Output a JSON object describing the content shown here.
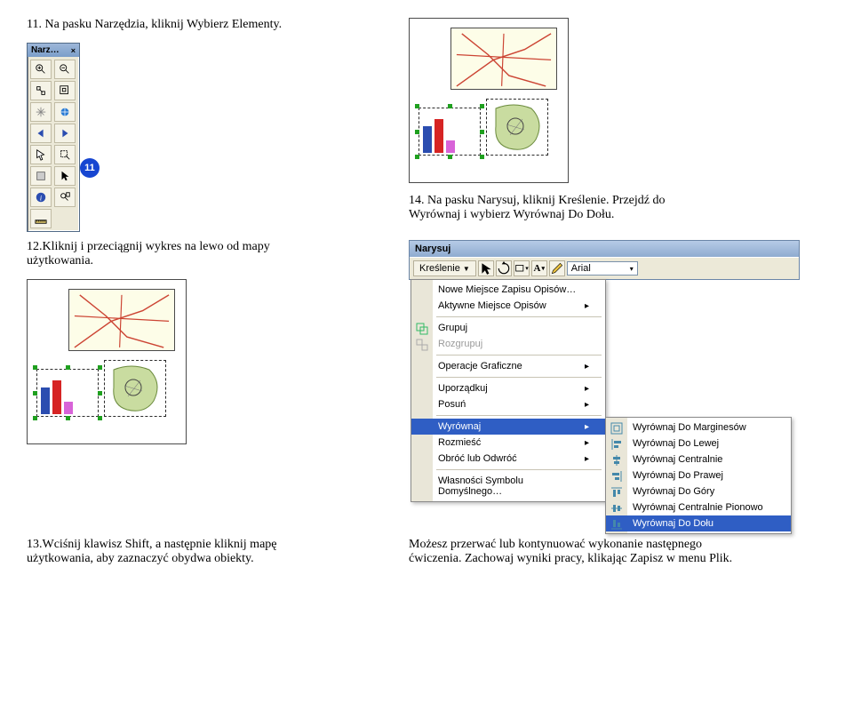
{
  "steps": {
    "s11": "11.    Na pasku Narzędzia, kliknij Wybierz Elementy.",
    "s14": "14.  Na pasku Narysuj, kliknij Kreślenie. Przejdź do Wyrównaj i wybierz Wyrównaj Do Dołu.",
    "s12": "12.Kliknij i przeciągnij wykres na lewo od mapy użytkowania.",
    "s13": "13.Wciśnij klawisz Shift, a następnie kliknij mapę użytkowania, aby zaznaczyć obydwa obiekty.",
    "note": "Możesz przerwać lub kontynuować wykonanie następnego ćwiczenia. Zachowaj wyniki pracy, klikając Zapisz w menu Plik."
  },
  "callout11": "11",
  "narz": {
    "title": "Narz…",
    "close": "×"
  },
  "narysuj": {
    "title": "Narysuj",
    "kreslenie": "Kreślenie",
    "font": "Arial"
  },
  "chart": {
    "bars": [
      {
        "h": 30,
        "color": "#2b4db0"
      },
      {
        "h": 38,
        "color": "#d62424"
      },
      {
        "h": 14,
        "color": "#d863d8"
      }
    ]
  },
  "menu": {
    "items": [
      {
        "label": "Nowe Miejsce Zapisu Opisów…",
        "sub": false,
        "disabled": false,
        "icon": ""
      },
      {
        "label": "Aktywne Miejsce Opisów",
        "sub": true,
        "disabled": false,
        "icon": ""
      },
      {
        "sep": true
      },
      {
        "label": "Grupuj",
        "sub": false,
        "disabled": false,
        "icon": "grp"
      },
      {
        "label": "Rozgrupuj",
        "sub": false,
        "disabled": true,
        "icon": "ungrp"
      },
      {
        "sep": true
      },
      {
        "label": "Operacje Graficzne",
        "sub": true,
        "disabled": false,
        "icon": ""
      },
      {
        "sep": true
      },
      {
        "label": "Uporządkuj",
        "sub": true,
        "disabled": false,
        "icon": ""
      },
      {
        "label": "Posuń",
        "sub": true,
        "disabled": false,
        "icon": ""
      },
      {
        "sep": true
      },
      {
        "label": "Wyrównaj",
        "sub": true,
        "disabled": false,
        "icon": "",
        "hl": true
      },
      {
        "label": "Rozmieść",
        "sub": true,
        "disabled": false,
        "icon": ""
      },
      {
        "label": "Obróć lub Odwróć",
        "sub": true,
        "disabled": false,
        "icon": ""
      },
      {
        "sep": true
      },
      {
        "label": "Własności Symbolu Domyślnego…",
        "sub": false,
        "disabled": false,
        "icon": ""
      }
    ],
    "submenu": [
      {
        "label": "Wyrównaj Do Marginesów",
        "icon": "marg"
      },
      {
        "label": "Wyrównaj Do Lewej",
        "icon": "left"
      },
      {
        "label": "Wyrównaj Centralnie",
        "icon": "centerH"
      },
      {
        "label": "Wyrównaj Do Prawej",
        "icon": "right"
      },
      {
        "label": "Wyrównaj Do Góry",
        "icon": "top"
      },
      {
        "label": "Wyrównaj Centralnie Pionowo",
        "icon": "centerV"
      },
      {
        "label": "Wyrównaj Do Dołu",
        "icon": "bottom",
        "hl": true
      }
    ]
  }
}
